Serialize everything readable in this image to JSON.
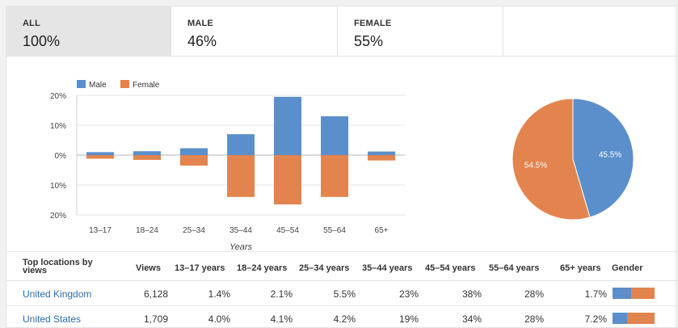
{
  "tabs": [
    {
      "label": "ALL",
      "value": "100%",
      "active": true
    },
    {
      "label": "MALE",
      "value": "46%",
      "active": false
    },
    {
      "label": "FEMALE",
      "value": "55%",
      "active": false
    }
  ],
  "colors": {
    "male": "#5b8fcc",
    "female": "#e3844e"
  },
  "chart_data": [
    {
      "type": "bar",
      "categories": [
        "13–17",
        "18–24",
        "25–34",
        "35–44",
        "45–54",
        "55–64",
        "65+"
      ],
      "series": [
        {
          "name": "Male",
          "values": [
            1,
            1.3,
            2.3,
            7,
            19.5,
            13,
            1.2
          ]
        },
        {
          "name": "Female",
          "values": [
            -1.2,
            -1.6,
            -3.5,
            -14,
            -16.5,
            -14,
            -1.8
          ]
        }
      ],
      "yticks": [
        "20%",
        "10%",
        "0%",
        "10%",
        "20%"
      ],
      "ylim": [
        -20,
        20
      ],
      "xlabel": "Years",
      "legend": "top-left"
    },
    {
      "type": "pie",
      "categories": [
        "Male",
        "Female"
      ],
      "values": [
        45.5,
        54.5
      ],
      "labels": [
        "45.5%",
        "54.5%"
      ]
    }
  ],
  "table": {
    "headers": [
      "Top locations by views",
      "Views",
      "13–17 years",
      "18–24 years",
      "25–34 years",
      "35–44 years",
      "45–54 years",
      "55–64 years",
      "65+ years",
      "Gender"
    ],
    "rows": [
      {
        "location": "United Kingdom",
        "views": "6,128",
        "cells": [
          "1.4%",
          "2.1%",
          "5.5%",
          "23%",
          "38%",
          "28%",
          "1.7%"
        ],
        "male_share": 0.45
      },
      {
        "location": "United States",
        "views": "1,709",
        "cells": [
          "4.0%",
          "4.1%",
          "4.2%",
          "19%",
          "34%",
          "28%",
          "7.2%"
        ],
        "male_share": 0.35
      }
    ]
  }
}
